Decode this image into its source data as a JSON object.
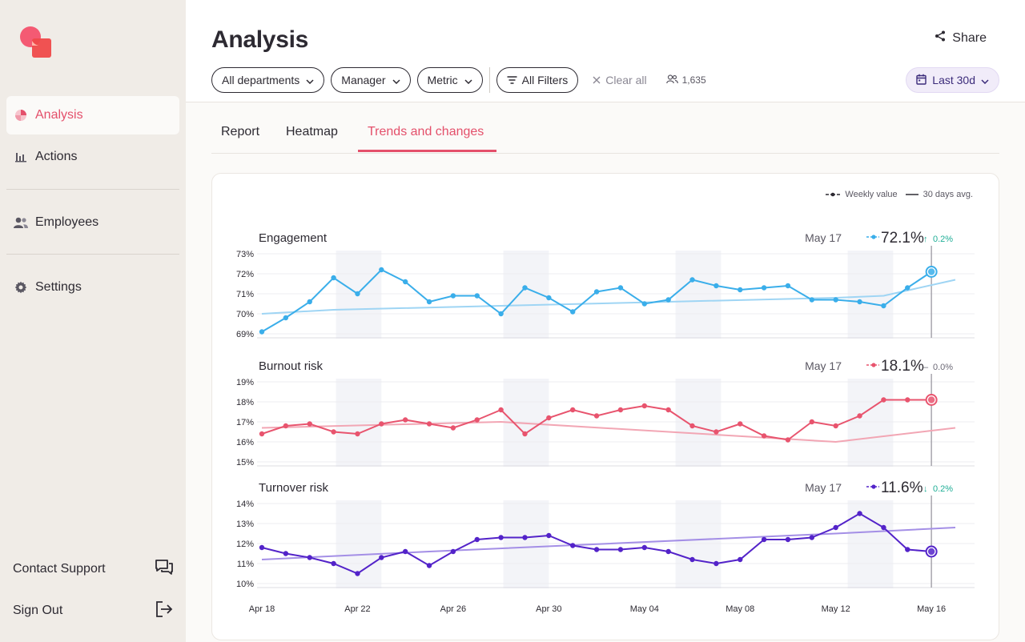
{
  "sidebar": {
    "items": [
      {
        "label": "Analysis",
        "icon": "pie-chart-icon",
        "active": true
      },
      {
        "label": "Actions",
        "icon": "bar-chart-icon",
        "active": false
      },
      {
        "label": "Employees",
        "icon": "people-icon",
        "active": false
      },
      {
        "label": "Settings",
        "icon": "gear-icon",
        "active": false
      }
    ],
    "bottom": [
      {
        "label": "Contact Support",
        "icon": "chat-icon"
      },
      {
        "label": "Sign Out",
        "icon": "sign-out-icon"
      }
    ]
  },
  "header": {
    "title": "Analysis",
    "share_label": "Share",
    "filters": [
      "All departments",
      "Manager",
      "Metric"
    ],
    "all_filters_label": "All Filters",
    "clear_all_label": "Clear all",
    "people_count": "1,635",
    "date_range": "Last 30d"
  },
  "tabs": [
    {
      "label": "Report",
      "active": false
    },
    {
      "label": "Heatmap",
      "active": false
    },
    {
      "label": "Trends and changes",
      "active": true
    }
  ],
  "legend": {
    "weekly": "Weekly value",
    "avg": "30 days avg."
  },
  "colors": {
    "accent": "#e4506b",
    "engagement": "#3aaeea",
    "burnout": "#e8546e",
    "turnover": "#5323c9",
    "up": "#1fae96",
    "flat": "#6b6875"
  },
  "chart_data": {
    "type": "line",
    "x_ticks": [
      "Apr 18",
      "Apr 22",
      "Apr 26",
      "Apr 30",
      "May 04",
      "May 08",
      "May 12",
      "May 16"
    ],
    "x_start": "Apr 18",
    "x_end": "May 17",
    "shaded_ranges": [
      [
        3.1,
        5.0
      ],
      [
        10.1,
        12.0
      ],
      [
        17.3,
        19.2
      ],
      [
        24.5,
        26.4
      ]
    ],
    "charts": [
      {
        "title": "Engagement",
        "date": "May 17",
        "value": "72.1%",
        "change": "0.2%",
        "direction": "up",
        "color": "#3aaeea",
        "avg_color": "#9fd5f4",
        "ylim": [
          69,
          73
        ],
        "yticks": [
          "73%",
          "72%",
          "71%",
          "70%",
          "69%"
        ],
        "values": [
          69.1,
          69.8,
          70.6,
          71.8,
          71.0,
          72.2,
          71.6,
          70.6,
          70.9,
          70.9,
          70.0,
          71.3,
          70.8,
          70.1,
          71.1,
          71.3,
          70.5,
          70.7,
          71.7,
          71.4,
          71.2,
          71.3,
          71.4,
          70.7,
          70.7,
          70.6,
          70.4,
          71.3,
          72.1
        ],
        "avg": [
          [
            0,
            70.0
          ],
          [
            3,
            70.2
          ],
          [
            10,
            70.4
          ],
          [
            17,
            70.6
          ],
          [
            24,
            70.8
          ],
          [
            26,
            70.9
          ],
          [
            29,
            71.7
          ]
        ]
      },
      {
        "title": "Burnout risk",
        "date": "May 17",
        "value": "18.1%",
        "change": "0.0%",
        "direction": "flat",
        "color": "#e8546e",
        "avg_color": "#f2a6b4",
        "ylim": [
          15,
          19
        ],
        "yticks": [
          "19%",
          "18%",
          "17%",
          "16%",
          "15%"
        ],
        "values": [
          16.4,
          16.8,
          16.9,
          16.5,
          16.4,
          16.9,
          17.1,
          16.9,
          16.7,
          17.1,
          17.6,
          16.4,
          17.2,
          17.6,
          17.3,
          17.6,
          17.8,
          17.6,
          16.8,
          16.5,
          16.9,
          16.3,
          16.1,
          17.0,
          16.8,
          17.3,
          18.1,
          18.1,
          18.1
        ],
        "avg": [
          [
            0,
            16.7
          ],
          [
            10,
            17.0
          ],
          [
            24,
            16.0
          ],
          [
            29,
            16.7
          ]
        ]
      },
      {
        "title": "Turnover risk",
        "date": "May 17",
        "value": "11.6%",
        "change": "0.2%",
        "direction": "down",
        "color": "#5323c9",
        "avg_color": "#a48fe6",
        "ylim": [
          10,
          14
        ],
        "yticks": [
          "14%",
          "13%",
          "12%",
          "11%",
          "10%"
        ],
        "values": [
          11.8,
          11.5,
          11.3,
          11.0,
          10.5,
          11.3,
          11.6,
          10.9,
          11.6,
          12.2,
          12.3,
          12.3,
          12.4,
          11.9,
          11.7,
          11.7,
          11.8,
          11.6,
          11.2,
          11.0,
          11.2,
          12.2,
          12.2,
          12.3,
          12.8,
          13.5,
          12.8,
          11.7,
          11.6
        ],
        "avg": [
          [
            0,
            11.2
          ],
          [
            7,
            11.6
          ],
          [
            24,
            12.5
          ],
          [
            29,
            12.8
          ]
        ]
      }
    ]
  }
}
